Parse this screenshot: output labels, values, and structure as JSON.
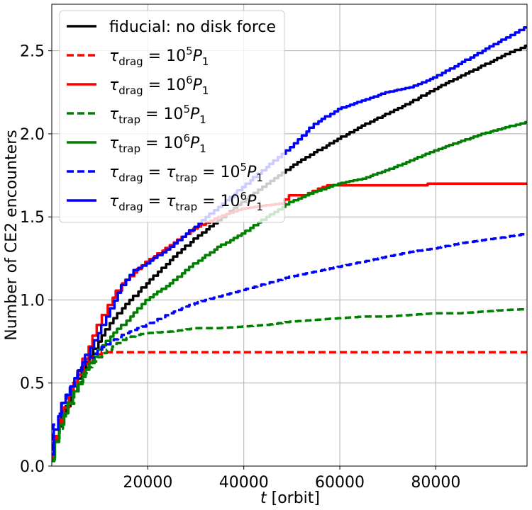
{
  "chart_data": {
    "type": "line",
    "xlabel": {
      "italic": "t",
      "rest": " [orbit]"
    },
    "ylabel": "Number of CE2 encounters",
    "xlim": [
      0,
      99000
    ],
    "ylim": [
      0,
      2.78
    ],
    "xticks": [
      20000,
      40000,
      60000,
      80000
    ],
    "yticks": [
      0.0,
      0.5,
      1.0,
      1.5,
      2.0,
      2.5
    ],
    "ytick_labels": [
      "0.0",
      "0.5",
      "1.0",
      "1.5",
      "2.0",
      "2.5"
    ],
    "grid": true,
    "legend_position": "upper-left",
    "series": [
      {
        "name": "fiducial: no disk force",
        "legend": {
          "plain": "fiducial: no disk force"
        },
        "color": "#000000",
        "dash": "solid",
        "points": [
          [
            0,
            0.05
          ],
          [
            1000,
            0.18
          ],
          [
            2500,
            0.3
          ],
          [
            5000,
            0.48
          ],
          [
            7500,
            0.62
          ],
          [
            10000,
            0.75
          ],
          [
            12500,
            0.86
          ],
          [
            15000,
            0.95
          ],
          [
            20000,
            1.1
          ],
          [
            25000,
            1.24
          ],
          [
            30000,
            1.37
          ],
          [
            35000,
            1.48
          ],
          [
            40000,
            1.59
          ],
          [
            45000,
            1.7
          ],
          [
            50000,
            1.8
          ],
          [
            55000,
            1.89
          ],
          [
            60000,
            1.97
          ],
          [
            65000,
            2.05
          ],
          [
            70000,
            2.12
          ],
          [
            75000,
            2.19
          ],
          [
            80000,
            2.27
          ],
          [
            85000,
            2.34
          ],
          [
            90000,
            2.41
          ],
          [
            95000,
            2.48
          ],
          [
            99000,
            2.53
          ]
        ]
      },
      {
        "name": "τdrag = 10^5 P1",
        "legend": {
          "sub": "drag",
          "val": "5",
          "extra": ""
        },
        "color": "#ff0000",
        "dash": "dashed",
        "points": [
          [
            0,
            0.05
          ],
          [
            1000,
            0.18
          ],
          [
            3000,
            0.35
          ],
          [
            5000,
            0.5
          ],
          [
            7000,
            0.6
          ],
          [
            9000,
            0.66
          ],
          [
            11000,
            0.685
          ],
          [
            12500,
            0.685
          ],
          [
            99000,
            0.685
          ]
        ]
      },
      {
        "name": "τdrag = 10^6 P1",
        "legend": {
          "sub": "drag",
          "val": "6",
          "extra": ""
        },
        "color": "#ff0000",
        "dash": "solid",
        "points": [
          [
            0,
            0.05
          ],
          [
            2000,
            0.28
          ],
          [
            5000,
            0.5
          ],
          [
            8000,
            0.72
          ],
          [
            10000,
            0.85
          ],
          [
            12000,
            0.97
          ],
          [
            15000,
            1.1
          ],
          [
            20000,
            1.23
          ],
          [
            25000,
            1.33
          ],
          [
            30000,
            1.43
          ],
          [
            35000,
            1.5
          ],
          [
            40000,
            1.55
          ],
          [
            45000,
            1.57
          ],
          [
            48000,
            1.58
          ],
          [
            50000,
            1.63
          ],
          [
            53000,
            1.63
          ],
          [
            56000,
            1.67
          ],
          [
            58000,
            1.69
          ],
          [
            60000,
            1.69
          ],
          [
            78000,
            1.69
          ],
          [
            78500,
            1.7
          ],
          [
            99000,
            1.7
          ]
        ]
      },
      {
        "name": "τtrap = 10^5 P1",
        "legend": {
          "sub": "trap",
          "val": "5",
          "extra": ""
        },
        "color": "#008000",
        "dash": "dashed",
        "points": [
          [
            0,
            0.03
          ],
          [
            1000,
            0.15
          ],
          [
            3000,
            0.3
          ],
          [
            5000,
            0.45
          ],
          [
            7000,
            0.56
          ],
          [
            9000,
            0.63
          ],
          [
            11000,
            0.68
          ],
          [
            13000,
            0.72
          ],
          [
            15000,
            0.76
          ],
          [
            18000,
            0.79
          ],
          [
            20000,
            0.8
          ],
          [
            25000,
            0.81
          ],
          [
            30000,
            0.83
          ],
          [
            35000,
            0.83
          ],
          [
            40000,
            0.84
          ],
          [
            45000,
            0.85
          ],
          [
            50000,
            0.87
          ],
          [
            55000,
            0.88
          ],
          [
            60000,
            0.89
          ],
          [
            65000,
            0.9
          ],
          [
            70000,
            0.9
          ],
          [
            75000,
            0.91
          ],
          [
            80000,
            0.92
          ],
          [
            85000,
            0.92
          ],
          [
            90000,
            0.93
          ],
          [
            95000,
            0.94
          ],
          [
            99000,
            0.945
          ]
        ]
      },
      {
        "name": "τtrap = 10^6 P1",
        "legend": {
          "sub": "trap",
          "val": "6",
          "extra": ""
        },
        "color": "#008000",
        "dash": "solid",
        "points": [
          [
            0,
            0.04
          ],
          [
            2000,
            0.25
          ],
          [
            5000,
            0.45
          ],
          [
            7500,
            0.58
          ],
          [
            10000,
            0.7
          ],
          [
            12500,
            0.78
          ],
          [
            15000,
            0.85
          ],
          [
            20000,
            1.0
          ],
          [
            25000,
            1.1
          ],
          [
            30000,
            1.22
          ],
          [
            35000,
            1.32
          ],
          [
            40000,
            1.4
          ],
          [
            45000,
            1.5
          ],
          [
            50000,
            1.59
          ],
          [
            55000,
            1.65
          ],
          [
            60000,
            1.7
          ],
          [
            65000,
            1.73
          ],
          [
            70000,
            1.78
          ],
          [
            75000,
            1.84
          ],
          [
            80000,
            1.9
          ],
          [
            85000,
            1.95
          ],
          [
            90000,
            2.0
          ],
          [
            95000,
            2.04
          ],
          [
            99000,
            2.07
          ]
        ]
      },
      {
        "name": "τdrag = τtrap = 10^5 P1",
        "legend": {
          "sub": "drag",
          "val": "5",
          "extra": "trap"
        },
        "color": "#0000ff",
        "dash": "dashed",
        "points": [
          [
            0,
            0.1
          ],
          [
            1000,
            0.25
          ],
          [
            2500,
            0.38
          ],
          [
            5000,
            0.52
          ],
          [
            7500,
            0.63
          ],
          [
            10000,
            0.7
          ],
          [
            12500,
            0.75
          ],
          [
            15000,
            0.79
          ],
          [
            20000,
            0.85
          ],
          [
            25000,
            0.92
          ],
          [
            30000,
            0.98
          ],
          [
            35000,
            1.02
          ],
          [
            40000,
            1.06
          ],
          [
            45000,
            1.1
          ],
          [
            50000,
            1.14
          ],
          [
            55000,
            1.17
          ],
          [
            60000,
            1.2
          ],
          [
            65000,
            1.23
          ],
          [
            70000,
            1.26
          ],
          [
            75000,
            1.29
          ],
          [
            80000,
            1.31
          ],
          [
            85000,
            1.34
          ],
          [
            90000,
            1.36
          ],
          [
            95000,
            1.38
          ],
          [
            99000,
            1.4
          ]
        ]
      },
      {
        "name": "τdrag = τtrap = 10^6 P1",
        "legend": {
          "sub": "drag",
          "val": "6",
          "extra": "trap"
        },
        "color": "#0000ff",
        "dash": "solid",
        "points": [
          [
            0,
            0.07
          ],
          [
            1000,
            0.22
          ],
          [
            2500,
            0.38
          ],
          [
            5000,
            0.53
          ],
          [
            7500,
            0.67
          ],
          [
            10000,
            0.8
          ],
          [
            12500,
            0.95
          ],
          [
            15000,
            1.09
          ],
          [
            17500,
            1.18
          ],
          [
            20000,
            1.22
          ],
          [
            22500,
            1.27
          ],
          [
            25000,
            1.32
          ],
          [
            30000,
            1.44
          ],
          [
            35000,
            1.56
          ],
          [
            40000,
            1.68
          ],
          [
            45000,
            1.8
          ],
          [
            50000,
            1.92
          ],
          [
            55000,
            2.06
          ],
          [
            60000,
            2.15
          ],
          [
            65000,
            2.2
          ],
          [
            70000,
            2.25
          ],
          [
            75000,
            2.28
          ],
          [
            80000,
            2.34
          ],
          [
            85000,
            2.42
          ],
          [
            90000,
            2.5
          ],
          [
            95000,
            2.58
          ],
          [
            99000,
            2.64
          ]
        ]
      }
    ]
  }
}
